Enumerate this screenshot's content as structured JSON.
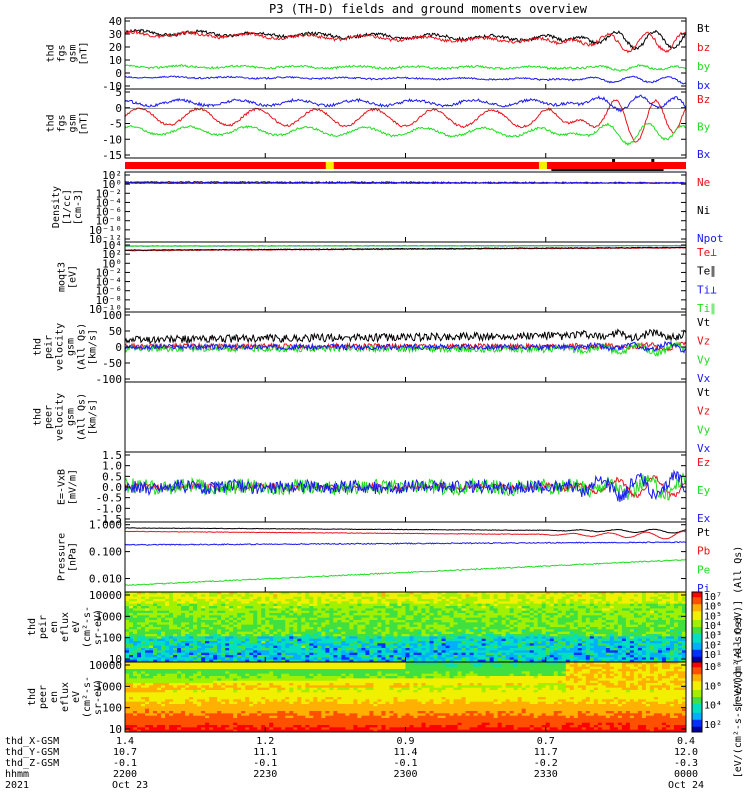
{
  "title": "P3 (TH-D) fields and ground moments overview",
  "colors": {
    "black": "#000000",
    "red": "#e8141c",
    "green": "#22dd22",
    "blue": "#1a1aee",
    "yellow": "#f5f000",
    "bar_red": "#ff0000"
  },
  "chart_data": [
    {
      "type": "line",
      "id": "fgs_gsm",
      "ylabel": [
        "thd",
        "fgs",
        "gsm",
        "[nT]"
      ],
      "yticks": [
        "40",
        "30",
        "20",
        "10",
        "0",
        "-10"
      ],
      "ylim": [
        -12,
        42
      ],
      "series": [
        {
          "name": "Bt",
          "color": "#000000",
          "baseline": 31,
          "trend": -6,
          "noise": 1.2,
          "wave": 1.5,
          "late_wave": 8
        },
        {
          "name": "bz",
          "color": "#e8141c",
          "baseline": 30,
          "trend": -7,
          "noise": 1.2,
          "wave": 1.5,
          "late_wave": 9
        },
        {
          "name": "by",
          "color": "#22dd22",
          "baseline": 5,
          "trend": -1,
          "noise": 0.8,
          "wave": 0.8,
          "late_wave": 2
        },
        {
          "name": "bx",
          "color": "#1a1aee",
          "baseline": -3,
          "trend": -2,
          "noise": 0.6,
          "wave": 0.5,
          "late_wave": 3
        }
      ]
    },
    {
      "type": "line",
      "id": "fgs_dsl",
      "ylabel": [
        "thd",
        "fgs",
        "gsm",
        "[nT]"
      ],
      "yticks": [
        "5",
        "0",
        "-5",
        "-10",
        "-15"
      ],
      "ylim": [
        -18,
        7
      ],
      "series": [
        {
          "name": "Bz",
          "color": "#e8141c",
          "baseline": -3,
          "trend": -1,
          "noise": 0.4,
          "wave": 3,
          "late_wave": 8
        },
        {
          "name": "By",
          "color": "#22dd22",
          "baseline": -8,
          "trend": -1,
          "noise": 0.4,
          "wave": 1.5,
          "late_wave": 4
        },
        {
          "name": "Bx",
          "color": "#1a1aee",
          "baseline": 2,
          "trend": 0,
          "noise": 0.5,
          "wave": 1,
          "late_wave": 3
        }
      ]
    },
    {
      "type": "line",
      "id": "density",
      "ylabel": [
        "Density",
        "[1/cc]",
        "[cm-3]"
      ],
      "yticks": [
        "10²",
        "10⁰",
        "10⁻²",
        "10⁻⁴",
        "10⁻⁶",
        "10⁻⁸",
        "10⁻¹⁰",
        "10⁻¹²"
      ],
      "ylim": [
        -13,
        2.5
      ],
      "log": true,
      "series": [
        {
          "name": "Ne",
          "color": "#e8141c",
          "baseline": 0.1,
          "trend": 0,
          "noise": 0.05,
          "wave": 0,
          "late_wave": 0
        },
        {
          "name": "Ni",
          "color": "#000000",
          "baseline": 0.05,
          "trend": 0,
          "noise": 0.05,
          "wave": 0,
          "late_wave": 0
        },
        {
          "name": "Npot",
          "color": "#1a1aee",
          "baseline": 0.3,
          "trend": -0.2,
          "noise": 0.15,
          "wave": 0,
          "late_wave": 0
        }
      ]
    },
    {
      "type": "line",
      "id": "temperature",
      "ylabel": [
        "moqt3",
        "[eV]"
      ],
      "yticks": [
        "10⁴",
        "10²",
        "10⁰",
        "10⁻²",
        "10⁻⁴",
        "10⁻⁶",
        "10⁻⁸",
        "10⁻¹⁰"
      ],
      "ylim": [
        -11,
        4.5
      ],
      "log": true,
      "series": [
        {
          "name": "Te⊥",
          "color": "#e8141c",
          "baseline": 2.6,
          "trend": 0.6,
          "noise": 0.08,
          "wave": 0,
          "late_wave": 0
        },
        {
          "name": "Te∥",
          "color": "#000000",
          "baseline": 2.7,
          "trend": 0.6,
          "noise": 0.08,
          "wave": 0,
          "late_wave": 0
        },
        {
          "name": "Ti⊥",
          "color": "#1a1aee",
          "baseline": 3.6,
          "trend": 0.1,
          "noise": 0.05,
          "wave": 0,
          "late_wave": 0
        },
        {
          "name": "Ti∥",
          "color": "#22dd22",
          "baseline": 3.6,
          "trend": 0.1,
          "noise": 0.05,
          "wave": 0,
          "late_wave": 0
        }
      ]
    },
    {
      "type": "line",
      "id": "peir_velocity",
      "ylabel": [
        "thd",
        "peir",
        "velocity",
        "gsm",
        "(All Qs)",
        "[km/s]"
      ],
      "yticks": [
        "100",
        "50",
        "0",
        "-50",
        "-100"
      ],
      "ylim": [
        -105,
        105
      ],
      "series": [
        {
          "name": "Vt",
          "color": "#000000",
          "baseline": 22,
          "trend": 15,
          "noise": 12,
          "wave": 0,
          "late_wave": 10
        },
        {
          "name": "Vz",
          "color": "#e8141c",
          "baseline": 2,
          "trend": 0,
          "noise": 8,
          "wave": 0,
          "late_wave": 8
        },
        {
          "name": "Vy",
          "color": "#22dd22",
          "baseline": -4,
          "trend": -3,
          "noise": 10,
          "wave": 0,
          "late_wave": 15
        },
        {
          "name": "Vx",
          "color": "#1a1aee",
          "baseline": 0,
          "trend": 0,
          "noise": 8,
          "wave": 0,
          "late_wave": 12
        }
      ]
    },
    {
      "type": "line",
      "id": "peer_velocity",
      "ylabel": [
        "thd",
        "peer",
        "velocity",
        "gsm",
        "(All Qs)",
        "[km/s]"
      ],
      "yticks": [],
      "ylim": [
        -100,
        100
      ],
      "series": [
        {
          "name": "Vt",
          "color": "#000000"
        },
        {
          "name": "Vz",
          "color": "#e8141c"
        },
        {
          "name": "Vy",
          "color": "#22dd22"
        },
        {
          "name": "Vx",
          "color": "#1a1aee"
        }
      ]
    },
    {
      "type": "line",
      "id": "efield",
      "ylabel": [
        "E=-VxB",
        "[mV/m]"
      ],
      "yticks": [
        "1.5",
        "1.0",
        "0.5",
        "0.0",
        "-0.5",
        "-1.0",
        "-1.5"
      ],
      "ylim": [
        -1.6,
        1.6
      ],
      "series": [
        {
          "name": "Ez",
          "color": "#e8141c",
          "baseline": 0,
          "trend": 0,
          "noise": 0.12,
          "wave": 0.05,
          "late_wave": 0.5
        },
        {
          "name": "Ey",
          "color": "#22dd22",
          "baseline": 0,
          "trend": 0,
          "noise": 0.35,
          "wave": 0.05,
          "late_wave": 0.4
        },
        {
          "name": "Ex",
          "color": "#1a1aee",
          "baseline": 0,
          "trend": 0,
          "noise": 0.3,
          "wave": 0.05,
          "late_wave": 0.6
        }
      ]
    },
    {
      "type": "line",
      "id": "pressure",
      "ylabel": [
        "Pressure",
        "[nPa]"
      ],
      "yticks": [
        "1.000",
        "0.100",
        "0.010"
      ],
      "ytick_vals": [
        0,
        -1,
        -2
      ],
      "ylim": [
        -2.5,
        0.1
      ],
      "log": true,
      "series": [
        {
          "name": "Pt",
          "color": "#000000",
          "baseline": -0.12,
          "trend": -0.12,
          "noise": 0.01,
          "wave": 0,
          "late_wave": 0.08
        },
        {
          "name": "Pb",
          "color": "#e8141c",
          "baseline": -0.25,
          "trend": -0.15,
          "noise": 0.01,
          "wave": 0,
          "late_wave": 0.15
        },
        {
          "name": "Pe",
          "color": "#22dd22",
          "baseline": -2.25,
          "trend": 0.95,
          "noise": 0.02,
          "wave": 0,
          "late_wave": 0
        },
        {
          "name": "Pi",
          "color": "#1a1aee",
          "baseline": -0.75,
          "trend": 0.1,
          "noise": 0.02,
          "wave": 0,
          "late_wave": 0
        }
      ]
    },
    {
      "type": "heatmap",
      "id": "peir_spectrogram",
      "ylabel": [
        "thd",
        "peir",
        "en",
        "eflux",
        "eV",
        "(cm²-s-",
        "sr-eV)"
      ],
      "yticks": [
        "10000",
        "1000",
        "100",
        "10"
      ],
      "ylim": [
        0.8,
        4.3
      ],
      "log": true,
      "colorbar": {
        "ticks": [
          "10⁷",
          "10⁶",
          "10⁵",
          "10⁴",
          "10³",
          "10²",
          "10¹"
        ],
        "label": "[eV/(cm²-s-sr-eV)] (All Qs)"
      }
    },
    {
      "type": "heatmap",
      "id": "peer_spectrogram",
      "ylabel": [
        "thd",
        "peer",
        "en",
        "eflux",
        "eV",
        "(cm²-s-",
        "sr-eV)"
      ],
      "yticks": [
        "10000",
        "1000",
        "100",
        "10"
      ],
      "ylim": [
        0.8,
        4.3
      ],
      "log": true,
      "colorbar": {
        "ticks": [
          "10⁸",
          "10⁶",
          "10⁴",
          "10²"
        ],
        "label": "[eV/(cm²-s-sr-eV)] (All Qs)"
      }
    }
  ],
  "xaxis": {
    "row_labels": [
      "thd_X-GSM",
      "thd_Y-GSM",
      "thd_Z-GSM",
      "hhmm",
      "2021"
    ],
    "ticks": [
      {
        "X": "1.4",
        "Y": "10.7",
        "Z": "-0.1",
        "hhmm": "2200",
        "date": "Oct 23"
      },
      {
        "X": "1.2",
        "Y": "11.1",
        "Z": "-0.1",
        "hhmm": "2230",
        "date": ""
      },
      {
        "X": "0.9",
        "Y": "11.4",
        "Z": "-0.1",
        "hhmm": "2300",
        "date": ""
      },
      {
        "X": "0.7",
        "Y": "11.7",
        "Z": "-0.2",
        "hhmm": "2330",
        "date": ""
      },
      {
        "X": "0.4",
        "Y": "12.0",
        "Z": "-0.3",
        "hhmm": "0000",
        "date": "Oct 24"
      }
    ]
  },
  "mode_bar": {
    "yellow_at": [
      0.365,
      0.745
    ],
    "dots_at": [
      0.87,
      0.94
    ],
    "line_range": [
      0.76,
      0.96
    ]
  }
}
